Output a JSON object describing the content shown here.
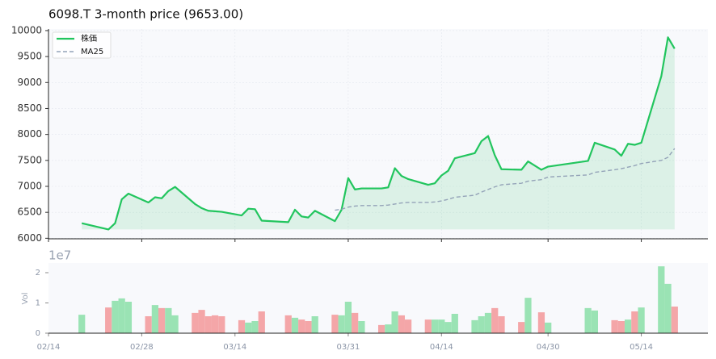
{
  "chart_data": [
    {
      "type": "line",
      "title": "6098.T  3-month price (9653.00)",
      "x": [
        "02/19",
        "02/23",
        "02/24",
        "02/25",
        "02/26",
        "03/01",
        "03/02",
        "03/03",
        "03/04",
        "03/05",
        "03/08",
        "03/09",
        "03/10",
        "03/11",
        "03/12",
        "03/15",
        "03/16",
        "03/17",
        "03/18",
        "03/22",
        "03/23",
        "03/24",
        "03/25",
        "03/26",
        "03/29",
        "03/30",
        "03/31",
        "04/01",
        "04/02",
        "04/05",
        "04/06",
        "04/07",
        "04/08",
        "04/09",
        "04/12",
        "04/13",
        "04/14",
        "04/15",
        "04/16",
        "04/19",
        "04/20",
        "04/21",
        "04/22",
        "04/23",
        "04/26",
        "04/27",
        "04/29",
        "04/30",
        "05/06",
        "05/07",
        "05/10",
        "05/11",
        "05/12",
        "05/13",
        "05/14",
        "05/17",
        "05/18",
        "05/19"
      ],
      "series": [
        {
          "name": "株価",
          "color": "#22c55e",
          "fill": true,
          "values": [
            6290,
            6170,
            6290,
            6750,
            6860,
            6690,
            6790,
            6770,
            6910,
            6990,
            6660,
            6580,
            6530,
            6520,
            6510,
            6440,
            6570,
            6560,
            6340,
            6310,
            6550,
            6420,
            6400,
            6530,
            6330,
            6550,
            7160,
            6940,
            6960,
            6960,
            6980,
            7350,
            7200,
            7140,
            7030,
            7060,
            7210,
            7300,
            7540,
            7640,
            7870,
            7970,
            7600,
            7330,
            7320,
            7480,
            7320,
            7380,
            7490,
            7840,
            7710,
            7590,
            7820,
            7800,
            7840,
            9120,
            9870,
            9653
          ]
        },
        {
          "name": "MA25",
          "color": "#94a3b8",
          "dashed": true,
          "values": [
            null,
            null,
            null,
            null,
            null,
            null,
            null,
            null,
            null,
            null,
            null,
            null,
            null,
            null,
            null,
            null,
            null,
            null,
            null,
            null,
            null,
            null,
            null,
            null,
            6540,
            6560,
            6600,
            6620,
            6630,
            6630,
            6640,
            6660,
            6680,
            6690,
            6690,
            6700,
            6720,
            6750,
            6790,
            6830,
            6890,
            6940,
            6990,
            7030,
            7060,
            7100,
            7130,
            7180,
            7220,
            7270,
            7320,
            7340,
            7370,
            7400,
            7440,
            7500,
            7560,
            7730
          ]
        }
      ],
      "xlim": [
        "02/14",
        "05/24"
      ],
      "xticks": [
        "02/14",
        "02/28",
        "03/14",
        "03/31",
        "04/14",
        "04/30",
        "05/14"
      ],
      "ylim": [
        5990,
        10030
      ],
      "yticks": [
        6000,
        6500,
        7000,
        7500,
        8000,
        8500,
        9000,
        9500,
        10000
      ],
      "grid": true,
      "legend": "upper-left"
    },
    {
      "type": "bar",
      "ylabel": "Vol",
      "offset_label": "1e7",
      "values": [
        0.61,
        0.85,
        1.07,
        1.15,
        1.04,
        0.56,
        0.93,
        0.83,
        0.83,
        0.59,
        0.67,
        0.77,
        0.56,
        0.59,
        0.56,
        0.43,
        0.35,
        0.4,
        0.72,
        0.59,
        0.51,
        0.45,
        0.4,
        0.56,
        0.61,
        0.59,
        1.04,
        0.67,
        0.4,
        0.27,
        0.29,
        0.72,
        0.59,
        0.45,
        0.45,
        0.45,
        0.45,
        0.37,
        0.64,
        0.43,
        0.56,
        0.67,
        0.83,
        0.56,
        0.37,
        1.17,
        0.69,
        0.35,
        0.83,
        0.75,
        0.43,
        0.4,
        0.45,
        0.72,
        0.85,
        2.21,
        1.63,
        0.88
      ],
      "colors": [
        "#9ae3b4",
        "#f4a6a8",
        "#9ae3b4",
        "#9ae3b4",
        "#9ae3b4",
        "#f4a6a8",
        "#9ae3b4",
        "#f4a6a8",
        "#9ae3b4",
        "#9ae3b4",
        "#f4a6a8",
        "#f4a6a8",
        "#f4a6a8",
        "#f4a6a8",
        "#f4a6a8",
        "#f4a6a8",
        "#9ae3b4",
        "#9ae3b4",
        "#f4a6a8",
        "#f4a6a8",
        "#9ae3b4",
        "#f4a6a8",
        "#f4a6a8",
        "#9ae3b4",
        "#f4a6a8",
        "#9ae3b4",
        "#9ae3b4",
        "#f4a6a8",
        "#9ae3b4",
        "#f4a6a8",
        "#9ae3b4",
        "#9ae3b4",
        "#f4a6a8",
        "#f4a6a8",
        "#f4a6a8",
        "#9ae3b4",
        "#9ae3b4",
        "#9ae3b4",
        "#9ae3b4",
        "#9ae3b4",
        "#9ae3b4",
        "#9ae3b4",
        "#f4a6a8",
        "#f4a6a8",
        "#f4a6a8",
        "#9ae3b4",
        "#f4a6a8",
        "#9ae3b4",
        "#9ae3b4",
        "#9ae3b4",
        "#f4a6a8",
        "#f4a6a8",
        "#9ae3b4",
        "#f4a6a8",
        "#9ae3b4",
        "#9ae3b4",
        "#9ae3b4",
        "#f4a6a8"
      ],
      "ylim": [
        0,
        2.32
      ],
      "yticks": [
        0,
        1,
        2
      ]
    }
  ]
}
